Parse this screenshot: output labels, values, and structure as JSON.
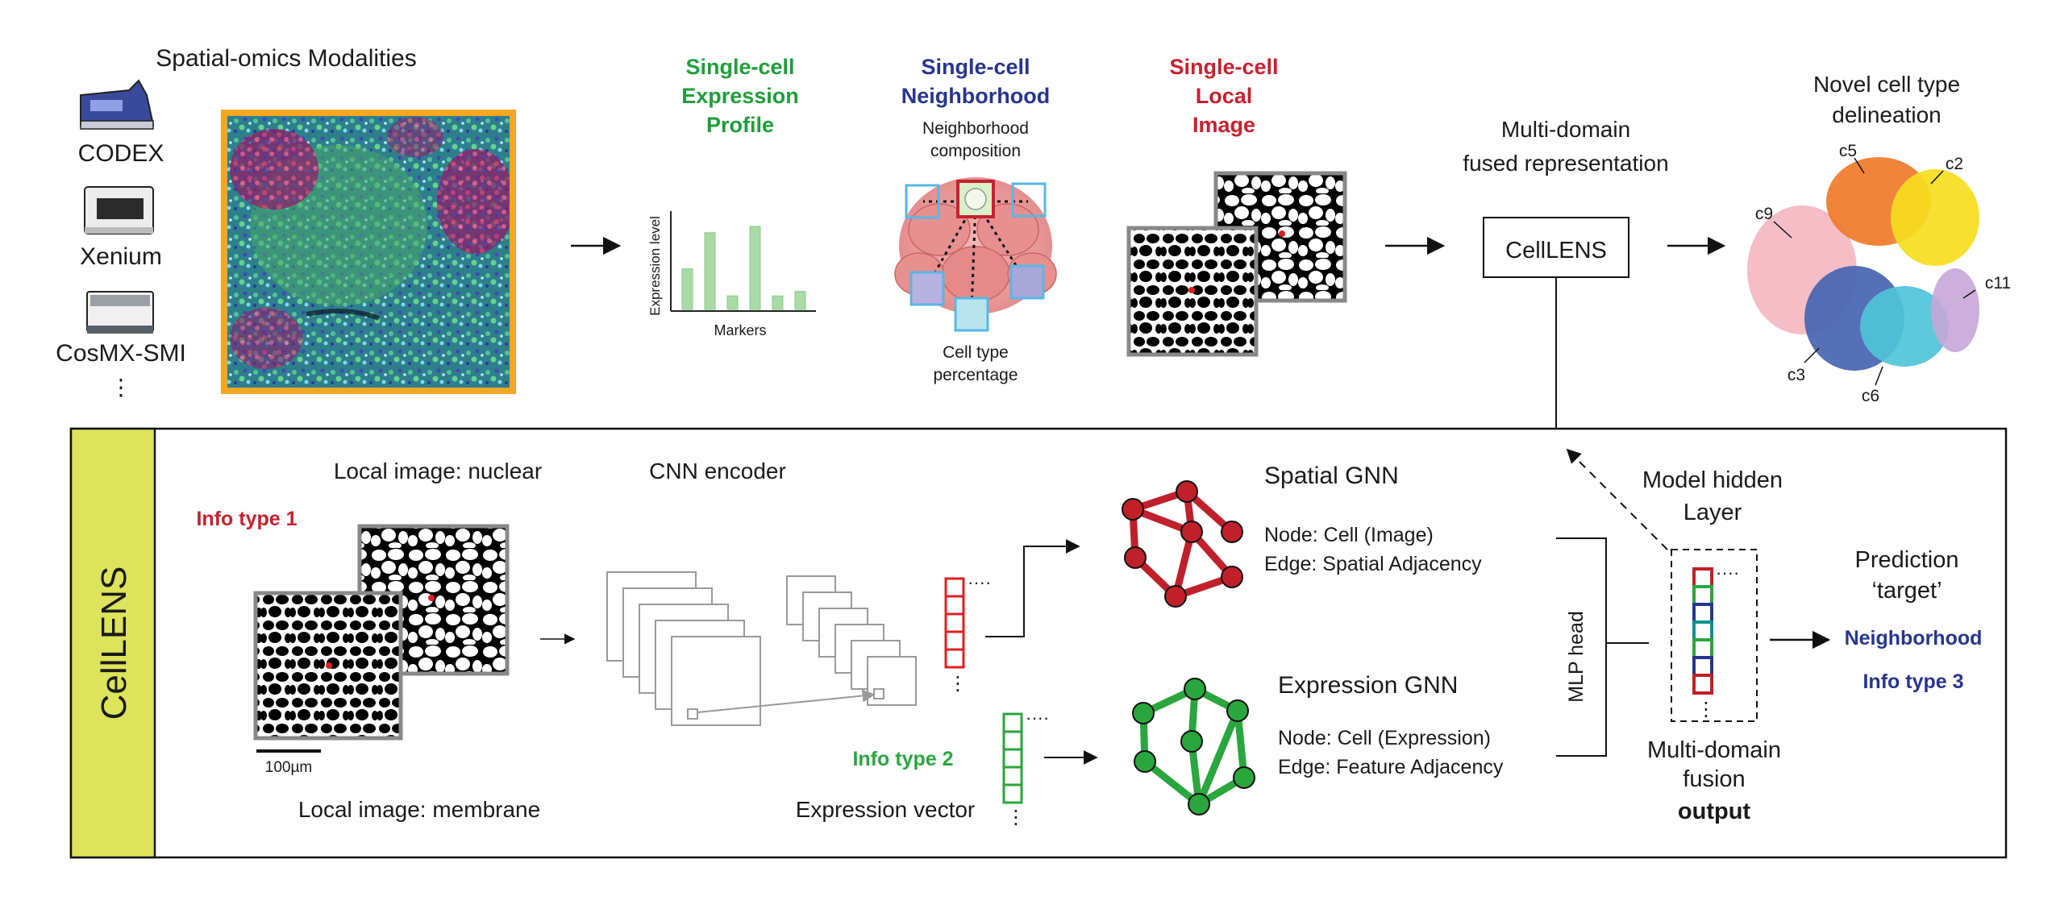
{
  "top": {
    "modalities_title": "Spatial-omics Modalities",
    "modalities": [
      "CODEX",
      "Xenium",
      "CosMX-SMI",
      "⋮"
    ],
    "expression": {
      "title_lines": [
        "Single-cell",
        "Expression",
        "Profile"
      ],
      "y_label": "Expression level",
      "x_label": "Markers",
      "bars": [
        0.45,
        0.85,
        0.15,
        0.92,
        0.15,
        0.2
      ]
    },
    "neighborhood": {
      "title_lines": [
        "Single-cell",
        "Neighborhood"
      ],
      "top_label_lines": [
        "Neighborhood",
        "composition"
      ],
      "bottom_label_lines": [
        "Cell type",
        "percentage"
      ]
    },
    "local_image": {
      "title_lines": [
        "Single-cell",
        "Local",
        "Image"
      ]
    },
    "fused_lines": [
      "Multi-domain",
      "fused representation"
    ],
    "celllens_box": "CellLENS",
    "novel_lines": [
      "Novel cell type",
      "delineation"
    ],
    "clusters": [
      "c5",
      "c2",
      "c9",
      "c11",
      "c3",
      "c6"
    ]
  },
  "panel": {
    "side_label": "CellLENS",
    "nuclear_label": "Local image: nuclear",
    "membrane_label": "Local image: membrane",
    "info1": "Info type 1",
    "scale_bar": "100µm",
    "cnn_label": "CNN encoder",
    "info2": "Info type 2",
    "expr_vector": "Expression vector",
    "spatial_gnn": {
      "title": "Spatial GNN",
      "node": "Node: Cell (Image)",
      "edge": "Edge: Spatial Adjacency"
    },
    "expression_gnn": {
      "title": "Expression GNN",
      "node": "Node: Cell (Expression)",
      "edge": "Edge: Feature Adjacency"
    },
    "mlp_head": "MLP head",
    "hidden_lines": [
      "Model hidden",
      "Layer"
    ],
    "fusion_lines": [
      "Multi-domain",
      "fusion"
    ],
    "fusion_output": "output",
    "prediction_lines": [
      "Prediction",
      "‘target’"
    ],
    "prediction_value": "Neighborhood",
    "info3": "Info type 3"
  },
  "colors": {
    "green": "#1f9e3a",
    "navy": "#27358f",
    "red": "#c8202f",
    "orange": "#f5a623",
    "panel_label_bg": "#dde35a",
    "spatial_node": "#c0202a",
    "expression_node": "#2aa63e"
  }
}
